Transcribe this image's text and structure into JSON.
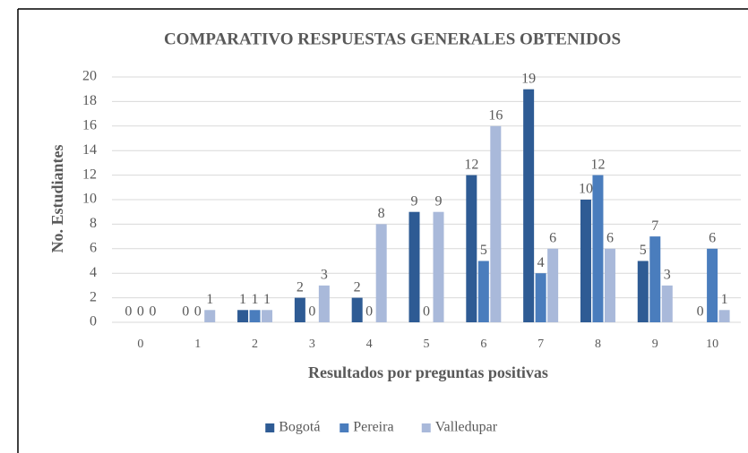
{
  "chart_data": {
    "type": "bar",
    "title": "COMPARATIVO RESPUESTAS GENERALES OBTENIDOS",
    "x_label": "Resultados por preguntas positivas",
    "y_label": "No. Estudiantes",
    "categories": [
      "0",
      "1",
      "2",
      "3",
      "4",
      "5",
      "6",
      "7",
      "8",
      "9",
      "10"
    ],
    "series": [
      {
        "name": "Bogotá",
        "color": "#2e5b94",
        "values": [
          0,
          0,
          1,
          2,
          2,
          9,
          12,
          19,
          10,
          5,
          0
        ]
      },
      {
        "name": "Pereira",
        "color": "#4a7dbd",
        "values": [
          0,
          0,
          1,
          0,
          0,
          0,
          5,
          4,
          12,
          7,
          6
        ]
      },
      {
        "name": "Valledupar",
        "color": "#a9b9da",
        "values": [
          0,
          1,
          1,
          3,
          8,
          9,
          16,
          6,
          6,
          3,
          1
        ]
      }
    ],
    "ylim": [
      0,
      20
    ],
    "yticks": [
      0,
      2,
      4,
      6,
      8,
      10,
      12,
      14,
      16,
      18,
      20
    ],
    "grid": true,
    "legend": "bottom"
  }
}
